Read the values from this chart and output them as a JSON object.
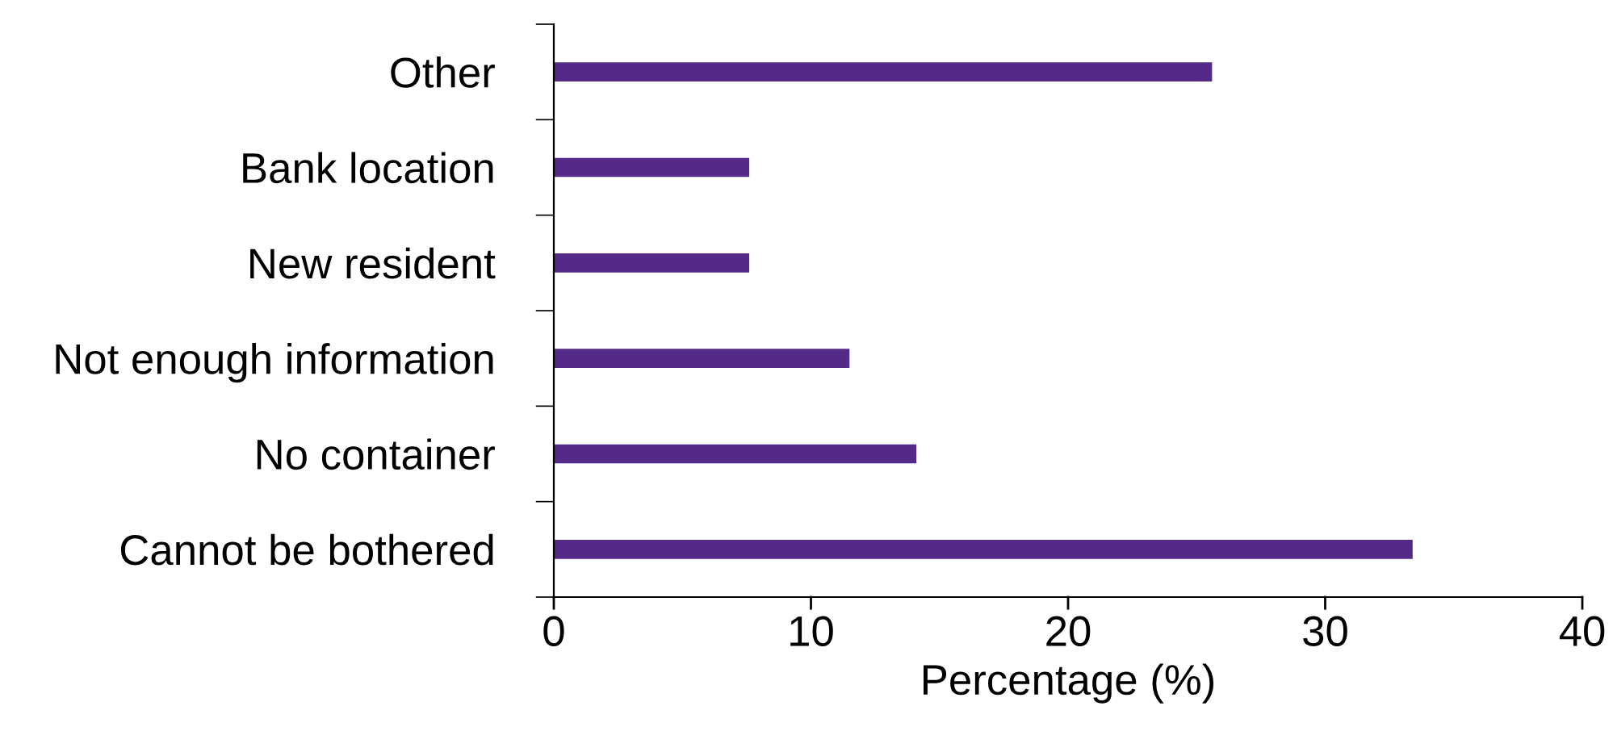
{
  "chart_data": {
    "type": "bar",
    "orientation": "horizontal",
    "xlabel": "Percentage (%)",
    "categories": [
      "Other",
      "Bank location",
      "New resident",
      "Not enough information",
      "No container",
      "Cannot be bothered"
    ],
    "values": [
      25.6,
      7.6,
      7.6,
      11.5,
      14.1,
      33.4
    ],
    "color": "#532a87",
    "xlim": [
      0,
      40
    ],
    "xticks": [
      0,
      10,
      20,
      30,
      40
    ],
    "grid": false,
    "legend": false
  }
}
